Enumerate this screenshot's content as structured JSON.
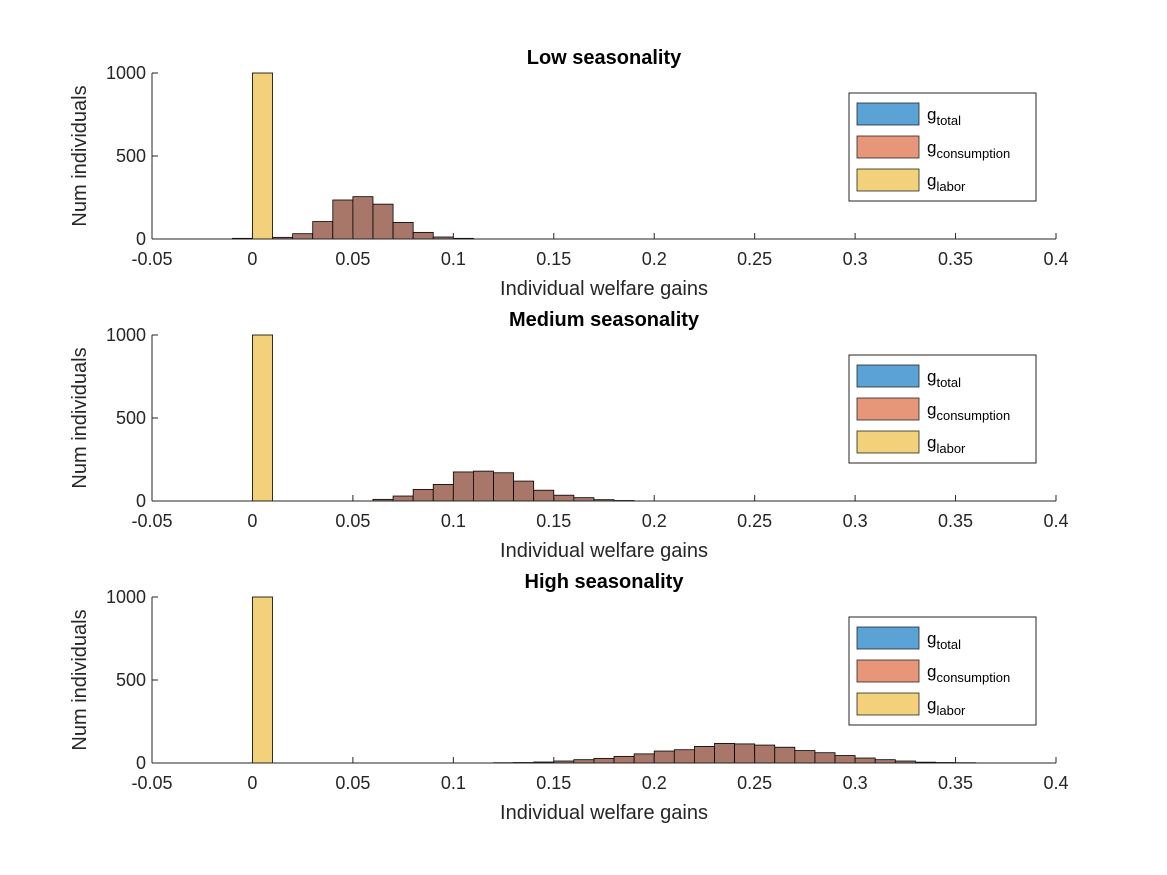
{
  "chart_data": [
    {
      "type": "bar",
      "title": "Low seasonality",
      "xlabel": "Individual welfare gains",
      "ylabel": "Num individuals",
      "xlim": [
        -0.05,
        0.4
      ],
      "ylim": [
        0,
        1000
      ],
      "xticks": [
        "-0.05",
        "0",
        "0.05",
        "0.1",
        "0.15",
        "0.2",
        "0.25",
        "0.3",
        "0.35",
        "0.4"
      ],
      "yticks": [
        "0",
        "500",
        "1000"
      ],
      "bin_width": 0.01,
      "legend": {
        "position": "top-right",
        "entries": [
          {
            "base": "g",
            "sub": "total",
            "color": "#5ba3d6"
          },
          {
            "base": "g",
            "sub": "consumption",
            "color": "#e8967a"
          },
          {
            "base": "g",
            "sub": "labor",
            "color": "#f3d07a"
          }
        ]
      },
      "series": [
        {
          "name": "g_total",
          "color": "#5ba3d6",
          "bins": [
            [
              -0.01,
              4
            ],
            [
              0.0,
              0
            ],
            [
              0.01,
              10
            ],
            [
              0.02,
              32
            ],
            [
              0.03,
              105
            ],
            [
              0.04,
              235
            ],
            [
              0.05,
              255
            ],
            [
              0.06,
              210
            ],
            [
              0.07,
              100
            ],
            [
              0.08,
              40
            ],
            [
              0.09,
              12
            ],
            [
              0.1,
              4
            ]
          ]
        },
        {
          "name": "g_consumption",
          "color": "#e8967a",
          "bins": [
            [
              -0.01,
              4
            ],
            [
              0.0,
              0
            ],
            [
              0.01,
              10
            ],
            [
              0.02,
              32
            ],
            [
              0.03,
              105
            ],
            [
              0.04,
              235
            ],
            [
              0.05,
              255
            ],
            [
              0.06,
              210
            ],
            [
              0.07,
              100
            ],
            [
              0.08,
              40
            ],
            [
              0.09,
              12
            ],
            [
              0.1,
              4
            ]
          ]
        },
        {
          "name": "g_labor",
          "color": "#f3d07a",
          "bins": [
            [
              0.0,
              1000
            ]
          ]
        }
      ]
    },
    {
      "type": "bar",
      "title": "Medium seasonality",
      "xlabel": "Individual welfare gains",
      "ylabel": "Num individuals",
      "xlim": [
        -0.05,
        0.4
      ],
      "ylim": [
        0,
        1000
      ],
      "xticks": [
        "-0.05",
        "0",
        "0.05",
        "0.1",
        "0.15",
        "0.2",
        "0.25",
        "0.3",
        "0.35",
        "0.4"
      ],
      "yticks": [
        "0",
        "500",
        "1000"
      ],
      "bin_width": 0.01,
      "legend": {
        "position": "top-right",
        "entries": [
          {
            "base": "g",
            "sub": "total",
            "color": "#5ba3d6"
          },
          {
            "base": "g",
            "sub": "consumption",
            "color": "#e8967a"
          },
          {
            "base": "g",
            "sub": "labor",
            "color": "#f3d07a"
          }
        ]
      },
      "series": [
        {
          "name": "g_total",
          "color": "#5ba3d6",
          "bins": [
            [
              0.06,
              10
            ],
            [
              0.07,
              30
            ],
            [
              0.08,
              70
            ],
            [
              0.09,
              100
            ],
            [
              0.1,
              175
            ],
            [
              0.11,
              180
            ],
            [
              0.12,
              170
            ],
            [
              0.13,
              120
            ],
            [
              0.14,
              65
            ],
            [
              0.15,
              35
            ],
            [
              0.16,
              20
            ],
            [
              0.17,
              8
            ],
            [
              0.18,
              3
            ]
          ]
        },
        {
          "name": "g_consumption",
          "color": "#e8967a",
          "bins": [
            [
              0.06,
              10
            ],
            [
              0.07,
              30
            ],
            [
              0.08,
              70
            ],
            [
              0.09,
              100
            ],
            [
              0.1,
              175
            ],
            [
              0.11,
              180
            ],
            [
              0.12,
              170
            ],
            [
              0.13,
              120
            ],
            [
              0.14,
              65
            ],
            [
              0.15,
              35
            ],
            [
              0.16,
              20
            ],
            [
              0.17,
              8
            ],
            [
              0.18,
              3
            ]
          ]
        },
        {
          "name": "g_labor",
          "color": "#f3d07a",
          "bins": [
            [
              0.0,
              1000
            ]
          ]
        }
      ]
    },
    {
      "type": "bar",
      "title": "High seasonality",
      "xlabel": "Individual welfare gains",
      "ylabel": "Num individuals",
      "xlim": [
        -0.05,
        0.4
      ],
      "ylim": [
        0,
        1000
      ],
      "xticks": [
        "-0.05",
        "0",
        "0.05",
        "0.1",
        "0.15",
        "0.2",
        "0.25",
        "0.3",
        "0.35",
        "0.4"
      ],
      "yticks": [
        "0",
        "500",
        "1000"
      ],
      "bin_width": 0.01,
      "legend": {
        "position": "top-right",
        "entries": [
          {
            "base": "g",
            "sub": "total",
            "color": "#5ba3d6"
          },
          {
            "base": "g",
            "sub": "consumption",
            "color": "#e8967a"
          },
          {
            "base": "g",
            "sub": "labor",
            "color": "#f3d07a"
          }
        ]
      },
      "series": [
        {
          "name": "g_total",
          "color": "#5ba3d6",
          "bins": [
            [
              0.12,
              2
            ],
            [
              0.13,
              3
            ],
            [
              0.14,
              6
            ],
            [
              0.15,
              12
            ],
            [
              0.16,
              20
            ],
            [
              0.17,
              28
            ],
            [
              0.18,
              40
            ],
            [
              0.19,
              55
            ],
            [
              0.2,
              72
            ],
            [
              0.21,
              80
            ],
            [
              0.22,
              100
            ],
            [
              0.23,
              118
            ],
            [
              0.24,
              115
            ],
            [
              0.25,
              108
            ],
            [
              0.26,
              95
            ],
            [
              0.27,
              75
            ],
            [
              0.28,
              62
            ],
            [
              0.29,
              45
            ],
            [
              0.3,
              30
            ],
            [
              0.31,
              20
            ],
            [
              0.32,
              12
            ],
            [
              0.33,
              5
            ],
            [
              0.34,
              3
            ],
            [
              0.35,
              2
            ]
          ]
        },
        {
          "name": "g_consumption",
          "color": "#e8967a",
          "bins": [
            [
              0.12,
              2
            ],
            [
              0.13,
              3
            ],
            [
              0.14,
              6
            ],
            [
              0.15,
              12
            ],
            [
              0.16,
              20
            ],
            [
              0.17,
              28
            ],
            [
              0.18,
              40
            ],
            [
              0.19,
              55
            ],
            [
              0.2,
              72
            ],
            [
              0.21,
              80
            ],
            [
              0.22,
              100
            ],
            [
              0.23,
              118
            ],
            [
              0.24,
              115
            ],
            [
              0.25,
              108
            ],
            [
              0.26,
              95
            ],
            [
              0.27,
              75
            ],
            [
              0.28,
              62
            ],
            [
              0.29,
              45
            ],
            [
              0.3,
              30
            ],
            [
              0.31,
              20
            ],
            [
              0.32,
              12
            ],
            [
              0.33,
              5
            ],
            [
              0.34,
              3
            ],
            [
              0.35,
              2
            ]
          ]
        },
        {
          "name": "g_labor",
          "color": "#f3d07a",
          "bins": [
            [
              0.0,
              1000
            ]
          ]
        }
      ]
    }
  ]
}
